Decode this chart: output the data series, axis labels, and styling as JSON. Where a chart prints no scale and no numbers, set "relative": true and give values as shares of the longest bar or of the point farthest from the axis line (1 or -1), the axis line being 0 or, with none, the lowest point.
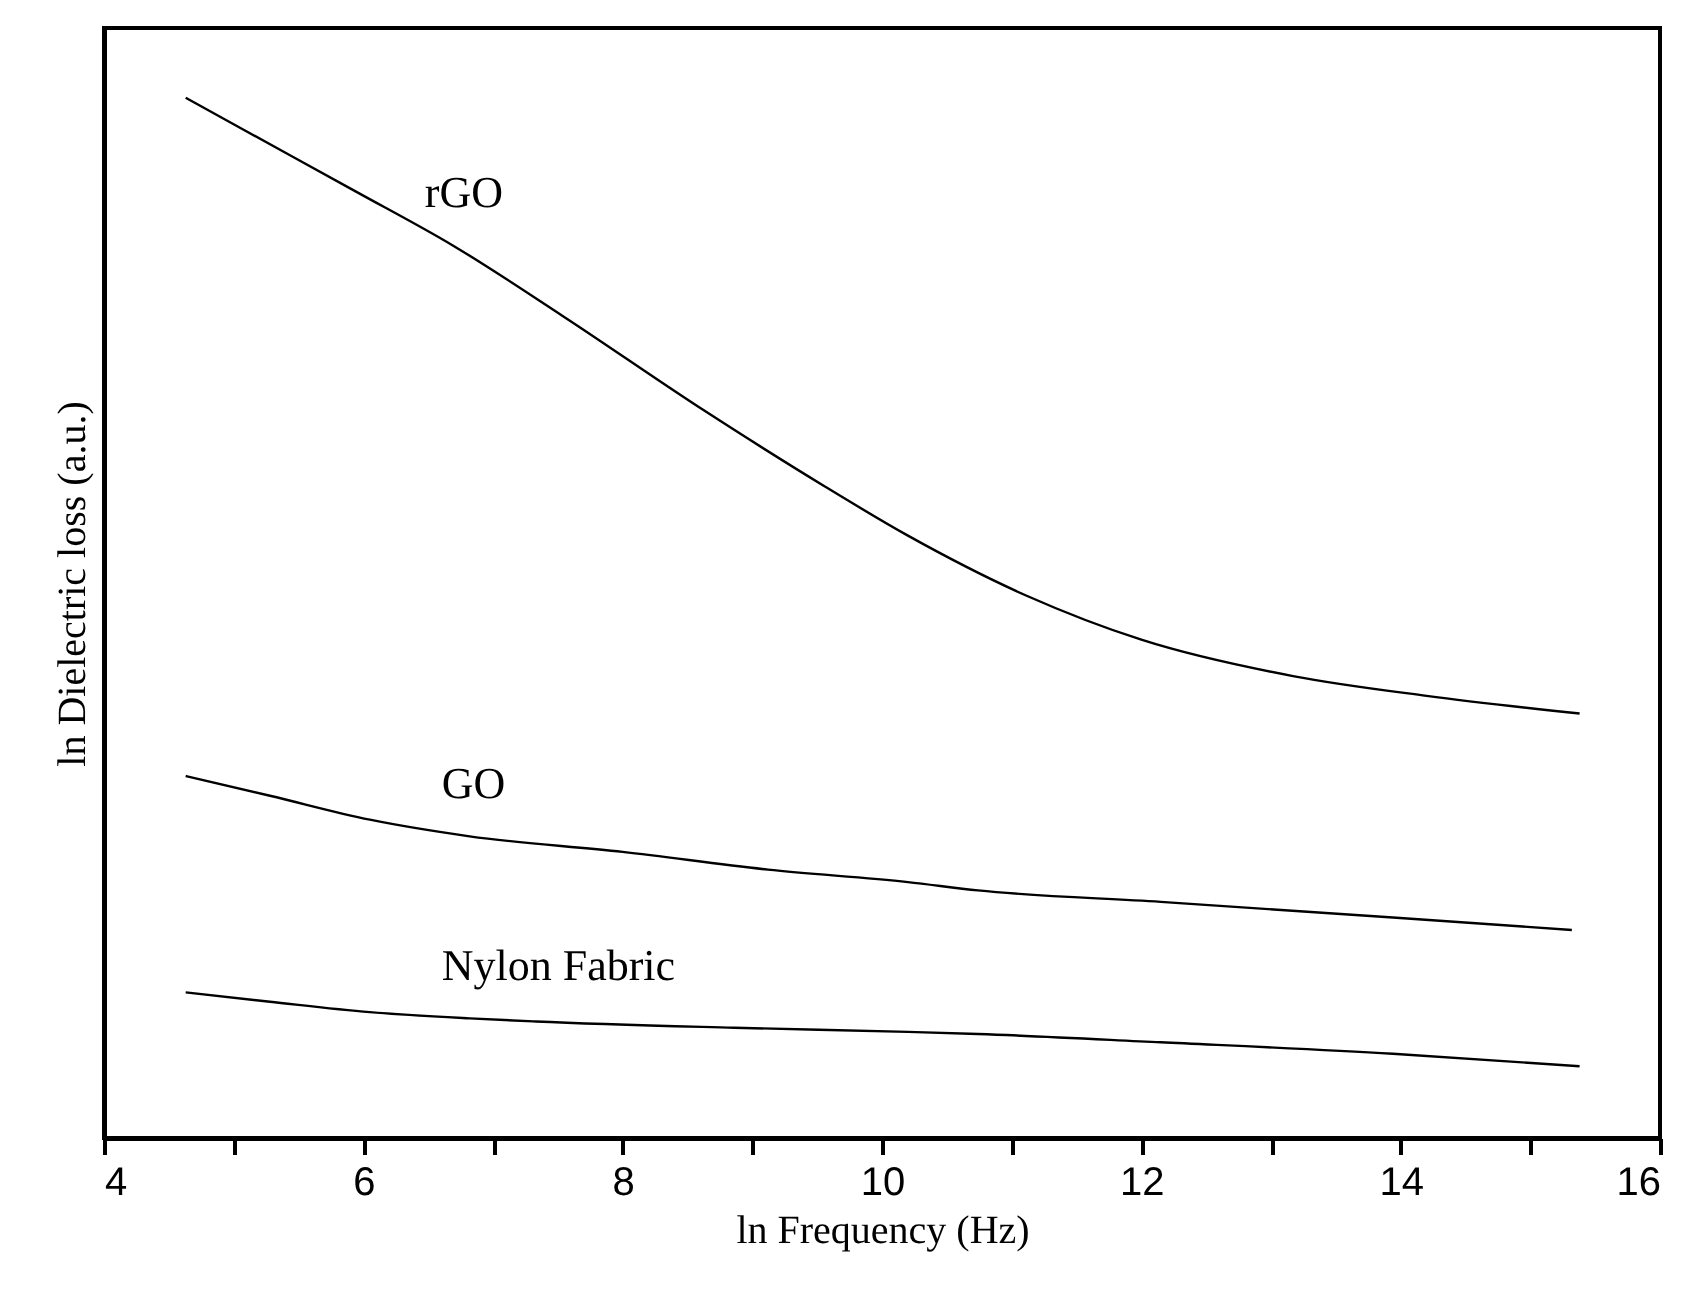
{
  "chart_data": {
    "type": "line",
    "xlabel": "ln Frequency (Hz)",
    "ylabel": "ln Dielectric loss (a.u.)",
    "relative": true,
    "xlim": [
      4,
      16
    ],
    "xticks": [
      4,
      {
        "value": 5,
        "label": null
      },
      6,
      {
        "value": 7,
        "label": null
      },
      8,
      {
        "value": 9,
        "label": null
      },
      10,
      {
        "value": 11,
        "label": null
      },
      12,
      {
        "value": 13,
        "label": null
      },
      14,
      {
        "value": 15,
        "label": null
      },
      16
    ],
    "grid": false,
    "marker": "none",
    "line_style": "solid",
    "series": [
      {
        "name": "rGO",
        "color": "#000000",
        "x": [
          4.63,
          5.08,
          5.94,
          6.69,
          7.54,
          8.62,
          9.55,
          10.2,
          11.12,
          12.0,
          13.17,
          14.2,
          15.38
        ],
        "values": [
          1.0,
          0.969,
          0.91,
          0.858,
          0.79,
          0.7,
          0.627,
          0.579,
          0.521,
          0.479,
          0.444,
          0.425,
          0.408
        ]
      },
      {
        "name": "GO",
        "color": "#000000",
        "x": [
          4.63,
          5.28,
          6.05,
          6.82,
          8.0,
          9.12,
          10.2,
          10.74,
          12.15,
          13.94,
          15.32
        ],
        "values": [
          0.348,
          0.329,
          0.306,
          0.29,
          0.275,
          0.258,
          0.246,
          0.238,
          0.227,
          0.212,
          0.2
        ]
      },
      {
        "name": "Nylon Fabric",
        "color": "#000000",
        "x": [
          4.63,
          5.28,
          6.05,
          6.82,
          7.33,
          8.86,
          10.2,
          10.74,
          12.15,
          13.94,
          15.38
        ],
        "values": [
          0.14,
          0.131,
          0.121,
          0.115,
          0.112,
          0.106,
          0.102,
          0.1,
          0.092,
          0.081,
          0.069
        ]
      }
    ]
  }
}
